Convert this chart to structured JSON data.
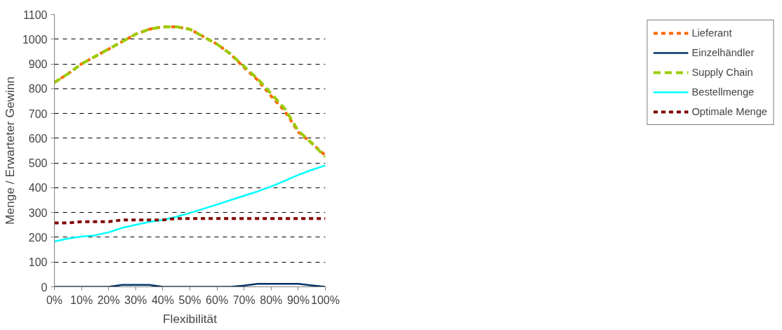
{
  "chart_data": {
    "type": "line",
    "xlabel": "Flexibilität",
    "ylabel": "Menge / Erwarteter Gewinn",
    "x": [
      0,
      5,
      10,
      15,
      20,
      25,
      30,
      35,
      40,
      45,
      50,
      55,
      60,
      65,
      70,
      75,
      80,
      85,
      90,
      95,
      100
    ],
    "xlim": [
      0,
      100
    ],
    "xticks": [
      {
        "value": 0,
        "label": "0%"
      },
      {
        "value": 10,
        "label": "10%"
      },
      {
        "value": 20,
        "label": "20%"
      },
      {
        "value": 30,
        "label": "30%"
      },
      {
        "value": 40,
        "label": "40%"
      },
      {
        "value": 50,
        "label": "50%"
      },
      {
        "value": 60,
        "label": "60%"
      },
      {
        "value": 70,
        "label": "70%"
      },
      {
        "value": 80,
        "label": "80%"
      },
      {
        "value": 90,
        "label": "90%"
      },
      {
        "value": 100,
        "label": "100%"
      }
    ],
    "ylim": [
      0,
      1100
    ],
    "yticks": [
      0,
      100,
      200,
      300,
      400,
      500,
      600,
      700,
      800,
      900,
      1000,
      1100
    ],
    "grid": "y",
    "legend": "right",
    "series": [
      {
        "name": "Lieferant",
        "color": "#ff6600",
        "line_style": "dotted",
        "values": [
          825,
          860,
          900,
          930,
          960,
          990,
          1020,
          1040,
          1050,
          1050,
          1040,
          1010,
          980,
          940,
          885,
          835,
          770,
          710,
          625,
          580,
          530
        ]
      },
      {
        "name": "Einzelhändler",
        "color": "#003366",
        "line_style": "solid",
        "values": [
          0,
          0,
          0,
          0,
          0,
          8,
          8,
          8,
          0,
          0,
          0,
          0,
          0,
          0,
          5,
          12,
          12,
          12,
          12,
          6,
          0
        ]
      },
      {
        "name": "Supply Chain",
        "color": "#99cc00",
        "line_style": "dashed",
        "values": [
          825,
          860,
          900,
          930,
          960,
          990,
          1020,
          1040,
          1050,
          1050,
          1040,
          1010,
          980,
          940,
          890,
          840,
          780,
          720,
          630,
          580,
          525
        ]
      },
      {
        "name": "Bestellmenge",
        "color": "#00ffff",
        "line_style": "solid",
        "values": [
          183,
          195,
          203,
          208,
          220,
          238,
          250,
          262,
          270,
          283,
          298,
          315,
          332,
          350,
          368,
          385,
          405,
          428,
          452,
          472,
          490
        ]
      },
      {
        "name": "Optimale Menge",
        "color": "#800000",
        "line_style": "dotted",
        "values": [
          258,
          258,
          263,
          263,
          263,
          270,
          270,
          270,
          270,
          276,
          276,
          276,
          276,
          276,
          276,
          276,
          276,
          276,
          276,
          276,
          276
        ]
      }
    ]
  }
}
